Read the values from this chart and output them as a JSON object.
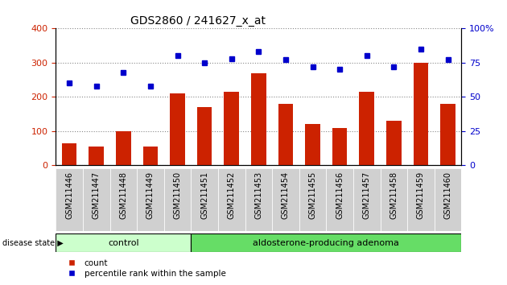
{
  "title": "GDS2860 / 241627_x_at",
  "samples": [
    "GSM211446",
    "GSM211447",
    "GSM211448",
    "GSM211449",
    "GSM211450",
    "GSM211451",
    "GSM211452",
    "GSM211453",
    "GSM211454",
    "GSM211455",
    "GSM211456",
    "GSM211457",
    "GSM211458",
    "GSM211459",
    "GSM211460"
  ],
  "counts": [
    65,
    55,
    100,
    55,
    210,
    170,
    215,
    270,
    180,
    120,
    110,
    215,
    130,
    300,
    180
  ],
  "percentiles": [
    60,
    58,
    68,
    58,
    80,
    75,
    78,
    83,
    77,
    72,
    70,
    80,
    72,
    85,
    77
  ],
  "bar_color": "#cc2200",
  "square_color": "#0000cc",
  "left_ylim": [
    0,
    400
  ],
  "right_ylim": [
    0,
    100
  ],
  "left_yticks": [
    0,
    100,
    200,
    300,
    400
  ],
  "right_yticks": [
    0,
    25,
    50,
    75,
    100
  ],
  "right_yticklabels": [
    "0",
    "25",
    "50",
    "75",
    "100%"
  ],
  "n_control": 5,
  "n_adenoma": 10,
  "control_color": "#ccffcc",
  "adenoma_color": "#66dd66",
  "disease_label": "disease state",
  "control_label": "control",
  "adenoma_label": "aldosterone-producing adenoma",
  "legend_count": "count",
  "legend_percentile": "percentile rank within the sample",
  "tick_bg_color": "#d0d0d0",
  "plot_bg_color": "#ffffff",
  "grid_color": "#888888"
}
